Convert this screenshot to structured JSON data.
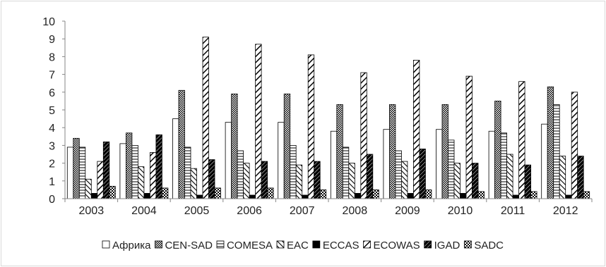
{
  "chart_data": {
    "type": "bar",
    "title": "",
    "xlabel": "",
    "ylabel": "",
    "ylim": [
      0,
      10
    ],
    "yticks": [
      "0",
      "1",
      "2",
      "3",
      "4",
      "5",
      "6",
      "7",
      "8",
      "9",
      "10"
    ],
    "grid": false,
    "legend_position": "bottom",
    "categories": [
      "2003",
      "2004",
      "2005",
      "2006",
      "2007",
      "2008",
      "2009",
      "2010",
      "2011",
      "2012"
    ],
    "series": [
      {
        "name": "Африка",
        "pattern": "blank",
        "values": [
          2.9,
          3.1,
          4.5,
          4.3,
          4.3,
          3.8,
          3.9,
          3.9,
          3.8,
          4.2
        ]
      },
      {
        "name": "CEN-SAD",
        "pattern": "dots",
        "values": [
          3.4,
          3.7,
          6.1,
          5.9,
          5.9,
          5.3,
          5.3,
          5.3,
          5.5,
          6.3
        ]
      },
      {
        "name": "COMESA",
        "pattern": "hlines",
        "values": [
          2.9,
          3.0,
          2.9,
          2.7,
          3.0,
          2.9,
          2.7,
          3.3,
          3.7,
          5.3
        ]
      },
      {
        "name": "EAC",
        "pattern": "backslash",
        "values": [
          1.1,
          1.8,
          1.7,
          2.0,
          1.9,
          2.0,
          2.1,
          2.0,
          2.5,
          2.4
        ]
      },
      {
        "name": "ECCAS",
        "pattern": "solid",
        "values": [
          0.3,
          0.3,
          0.2,
          0.2,
          0.2,
          0.3,
          0.3,
          0.3,
          0.2,
          0.2
        ]
      },
      {
        "name": "ECOWAS",
        "pattern": "wideslash",
        "values": [
          2.1,
          2.6,
          9.1,
          8.7,
          8.1,
          7.1,
          7.8,
          6.9,
          6.6,
          6.0
        ]
      },
      {
        "name": "IGAD",
        "pattern": "darkslash",
        "values": [
          3.2,
          3.6,
          2.2,
          2.1,
          2.1,
          2.5,
          2.8,
          2.0,
          1.9,
          2.4
        ]
      },
      {
        "name": "SADC",
        "pattern": "checker",
        "values": [
          0.7,
          0.6,
          0.6,
          0.6,
          0.5,
          0.5,
          0.5,
          0.4,
          0.4,
          0.4
        ]
      }
    ],
    "colors": {
      "frame": "#d9d9d9",
      "axis": "#868686",
      "bar_stroke": "#000000",
      "bar_fill": "#ffffff",
      "ink": "#000000"
    }
  }
}
